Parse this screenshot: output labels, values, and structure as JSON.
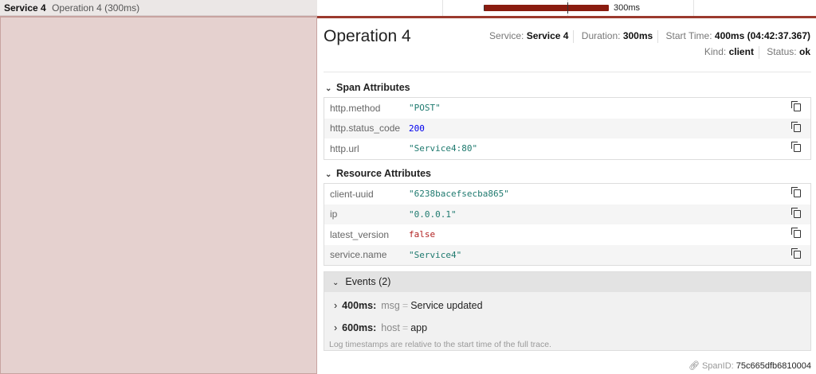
{
  "row_header": {
    "service": "Service 4",
    "operation": "Operation 4 (300ms)"
  },
  "timeline": {
    "duration_label": "300ms",
    "bar_color": "#8a1c10"
  },
  "detail": {
    "title": "Operation 4",
    "service_label": "Service:",
    "service": "Service 4",
    "duration_label": "Duration:",
    "duration": "300ms",
    "start_label": "Start Time:",
    "start": "400ms (04:42:37.367)",
    "kind_label": "Kind:",
    "kind": "client",
    "status_label": "Status:",
    "status": "ok"
  },
  "span_attributes": {
    "title": "Span Attributes",
    "rows": [
      {
        "key": "http.method",
        "value": "\"POST\"",
        "color": "#1f7a6f"
      },
      {
        "key": "http.status_code",
        "value": "200",
        "color": "#0000ee"
      },
      {
        "key": "http.url",
        "value": "\"Service4:80\"",
        "color": "#1f7a6f"
      }
    ]
  },
  "resource_attributes": {
    "title": "Resource Attributes",
    "rows": [
      {
        "key": "client-uuid",
        "value": "\"6238bacefsecba865\"",
        "color": "#1f7a6f"
      },
      {
        "key": "ip",
        "value": "\"0.0.0.1\"",
        "color": "#1f7a6f"
      },
      {
        "key": "latest_version",
        "value": "false",
        "color": "#b22222"
      },
      {
        "key": "service.name",
        "value": "\"Service4\"",
        "color": "#1f7a6f"
      }
    ]
  },
  "events": {
    "title": "Events (2)",
    "items": [
      {
        "time": "400ms:",
        "key": "msg",
        "eq": "=",
        "value": "Service updated"
      },
      {
        "time": "600ms:",
        "key": "host",
        "eq": "=",
        "value": "app"
      }
    ],
    "note": "Log timestamps are relative to the start time of the full trace."
  },
  "span_id": {
    "label": "SpanID:",
    "value": "75c665dfb6810004"
  }
}
